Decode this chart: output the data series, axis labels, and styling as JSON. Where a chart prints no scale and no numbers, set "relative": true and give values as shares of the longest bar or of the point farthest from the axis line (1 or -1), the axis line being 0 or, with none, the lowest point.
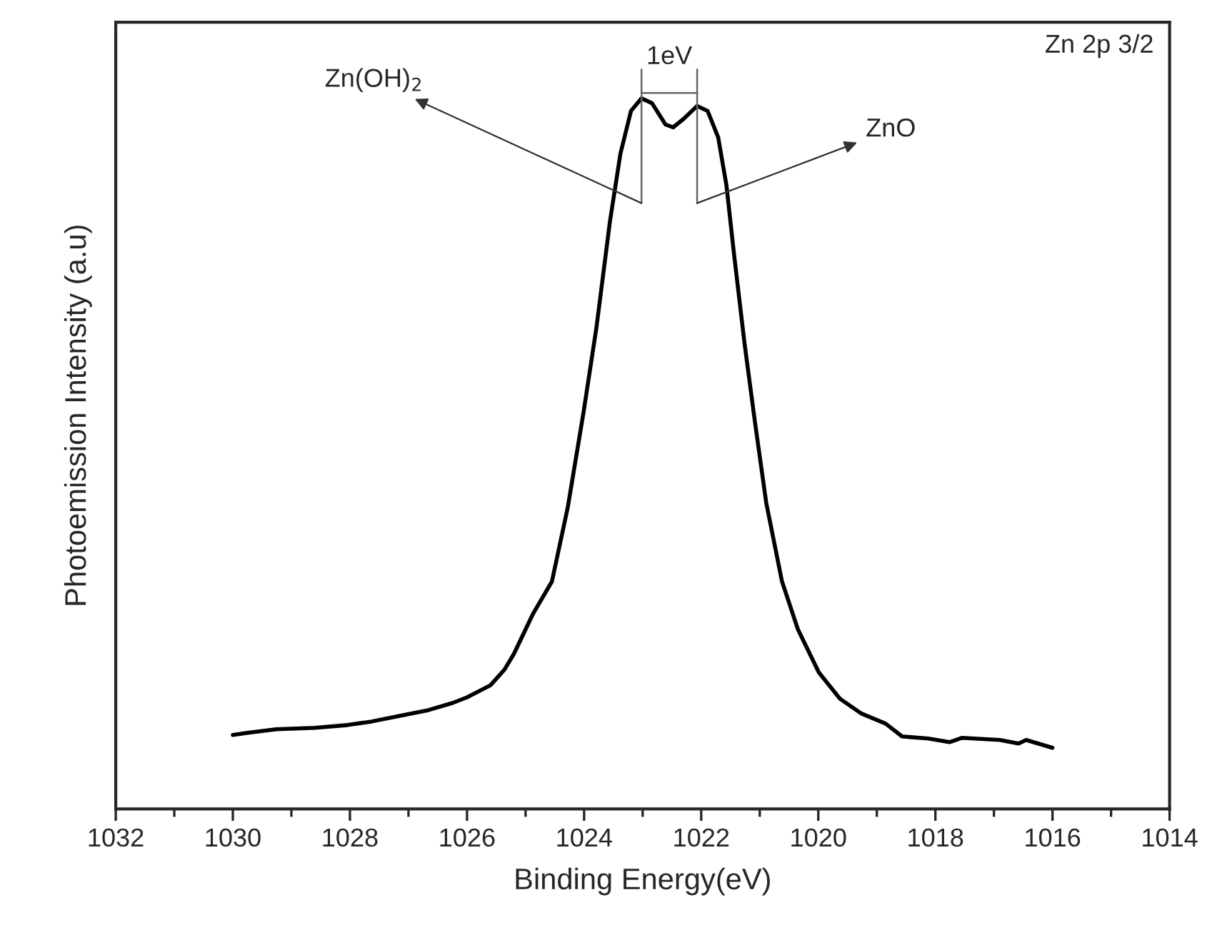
{
  "chart_data": {
    "type": "line",
    "relative": true,
    "xlabel": "Binding Energy(eV)",
    "ylabel": "Photoemission Intensity (a.u)",
    "xlim": [
      1032,
      1014
    ],
    "xticks": [
      1032,
      1030,
      1028,
      1026,
      1024,
      1022,
      1020,
      1018,
      1016,
      1014
    ],
    "tick_labels": "x",
    "grid": false,
    "legend": false,
    "marker": "none",
    "line_style": "solid",
    "series": [
      {
        "color": "#000000",
        "x": [
          1030.0,
          1029.75,
          1029.26,
          1028.6,
          1028.04,
          1027.63,
          1027.15,
          1026.66,
          1026.25,
          1026.0,
          1025.6,
          1025.36,
          1025.2,
          1024.87,
          1024.55,
          1024.28,
          1024.01,
          1023.79,
          1023.56,
          1023.38,
          1023.2,
          1023.02,
          1022.84,
          1022.61,
          1022.48,
          1022.3,
          1022.07,
          1021.89,
          1021.71,
          1021.57,
          1021.44,
          1021.26,
          1021.08,
          1020.89,
          1020.62,
          1020.35,
          1019.99,
          1019.63,
          1019.26,
          1018.85,
          1018.57,
          1018.12,
          1017.76,
          1017.55,
          1016.9,
          1016.58,
          1016.45,
          1016.0
        ],
        "values": [
          0.104,
          0.107,
          0.112,
          0.114,
          0.118,
          0.123,
          0.131,
          0.139,
          0.149,
          0.157,
          0.174,
          0.196,
          0.218,
          0.275,
          0.32,
          0.424,
          0.558,
          0.677,
          0.826,
          0.922,
          0.982,
          1.0,
          0.993,
          0.963,
          0.959,
          0.971,
          0.989,
          0.982,
          0.945,
          0.878,
          0.781,
          0.655,
          0.543,
          0.431,
          0.32,
          0.253,
          0.192,
          0.155,
          0.134,
          0.12,
          0.102,
          0.099,
          0.094,
          0.1,
          0.097,
          0.092,
          0.097,
          0.086
        ]
      }
    ],
    "annotations": [
      "Zn(OH)$_{2}$",
      "ZnO",
      "1eV",
      "Zn 2p 3/2"
    ]
  }
}
